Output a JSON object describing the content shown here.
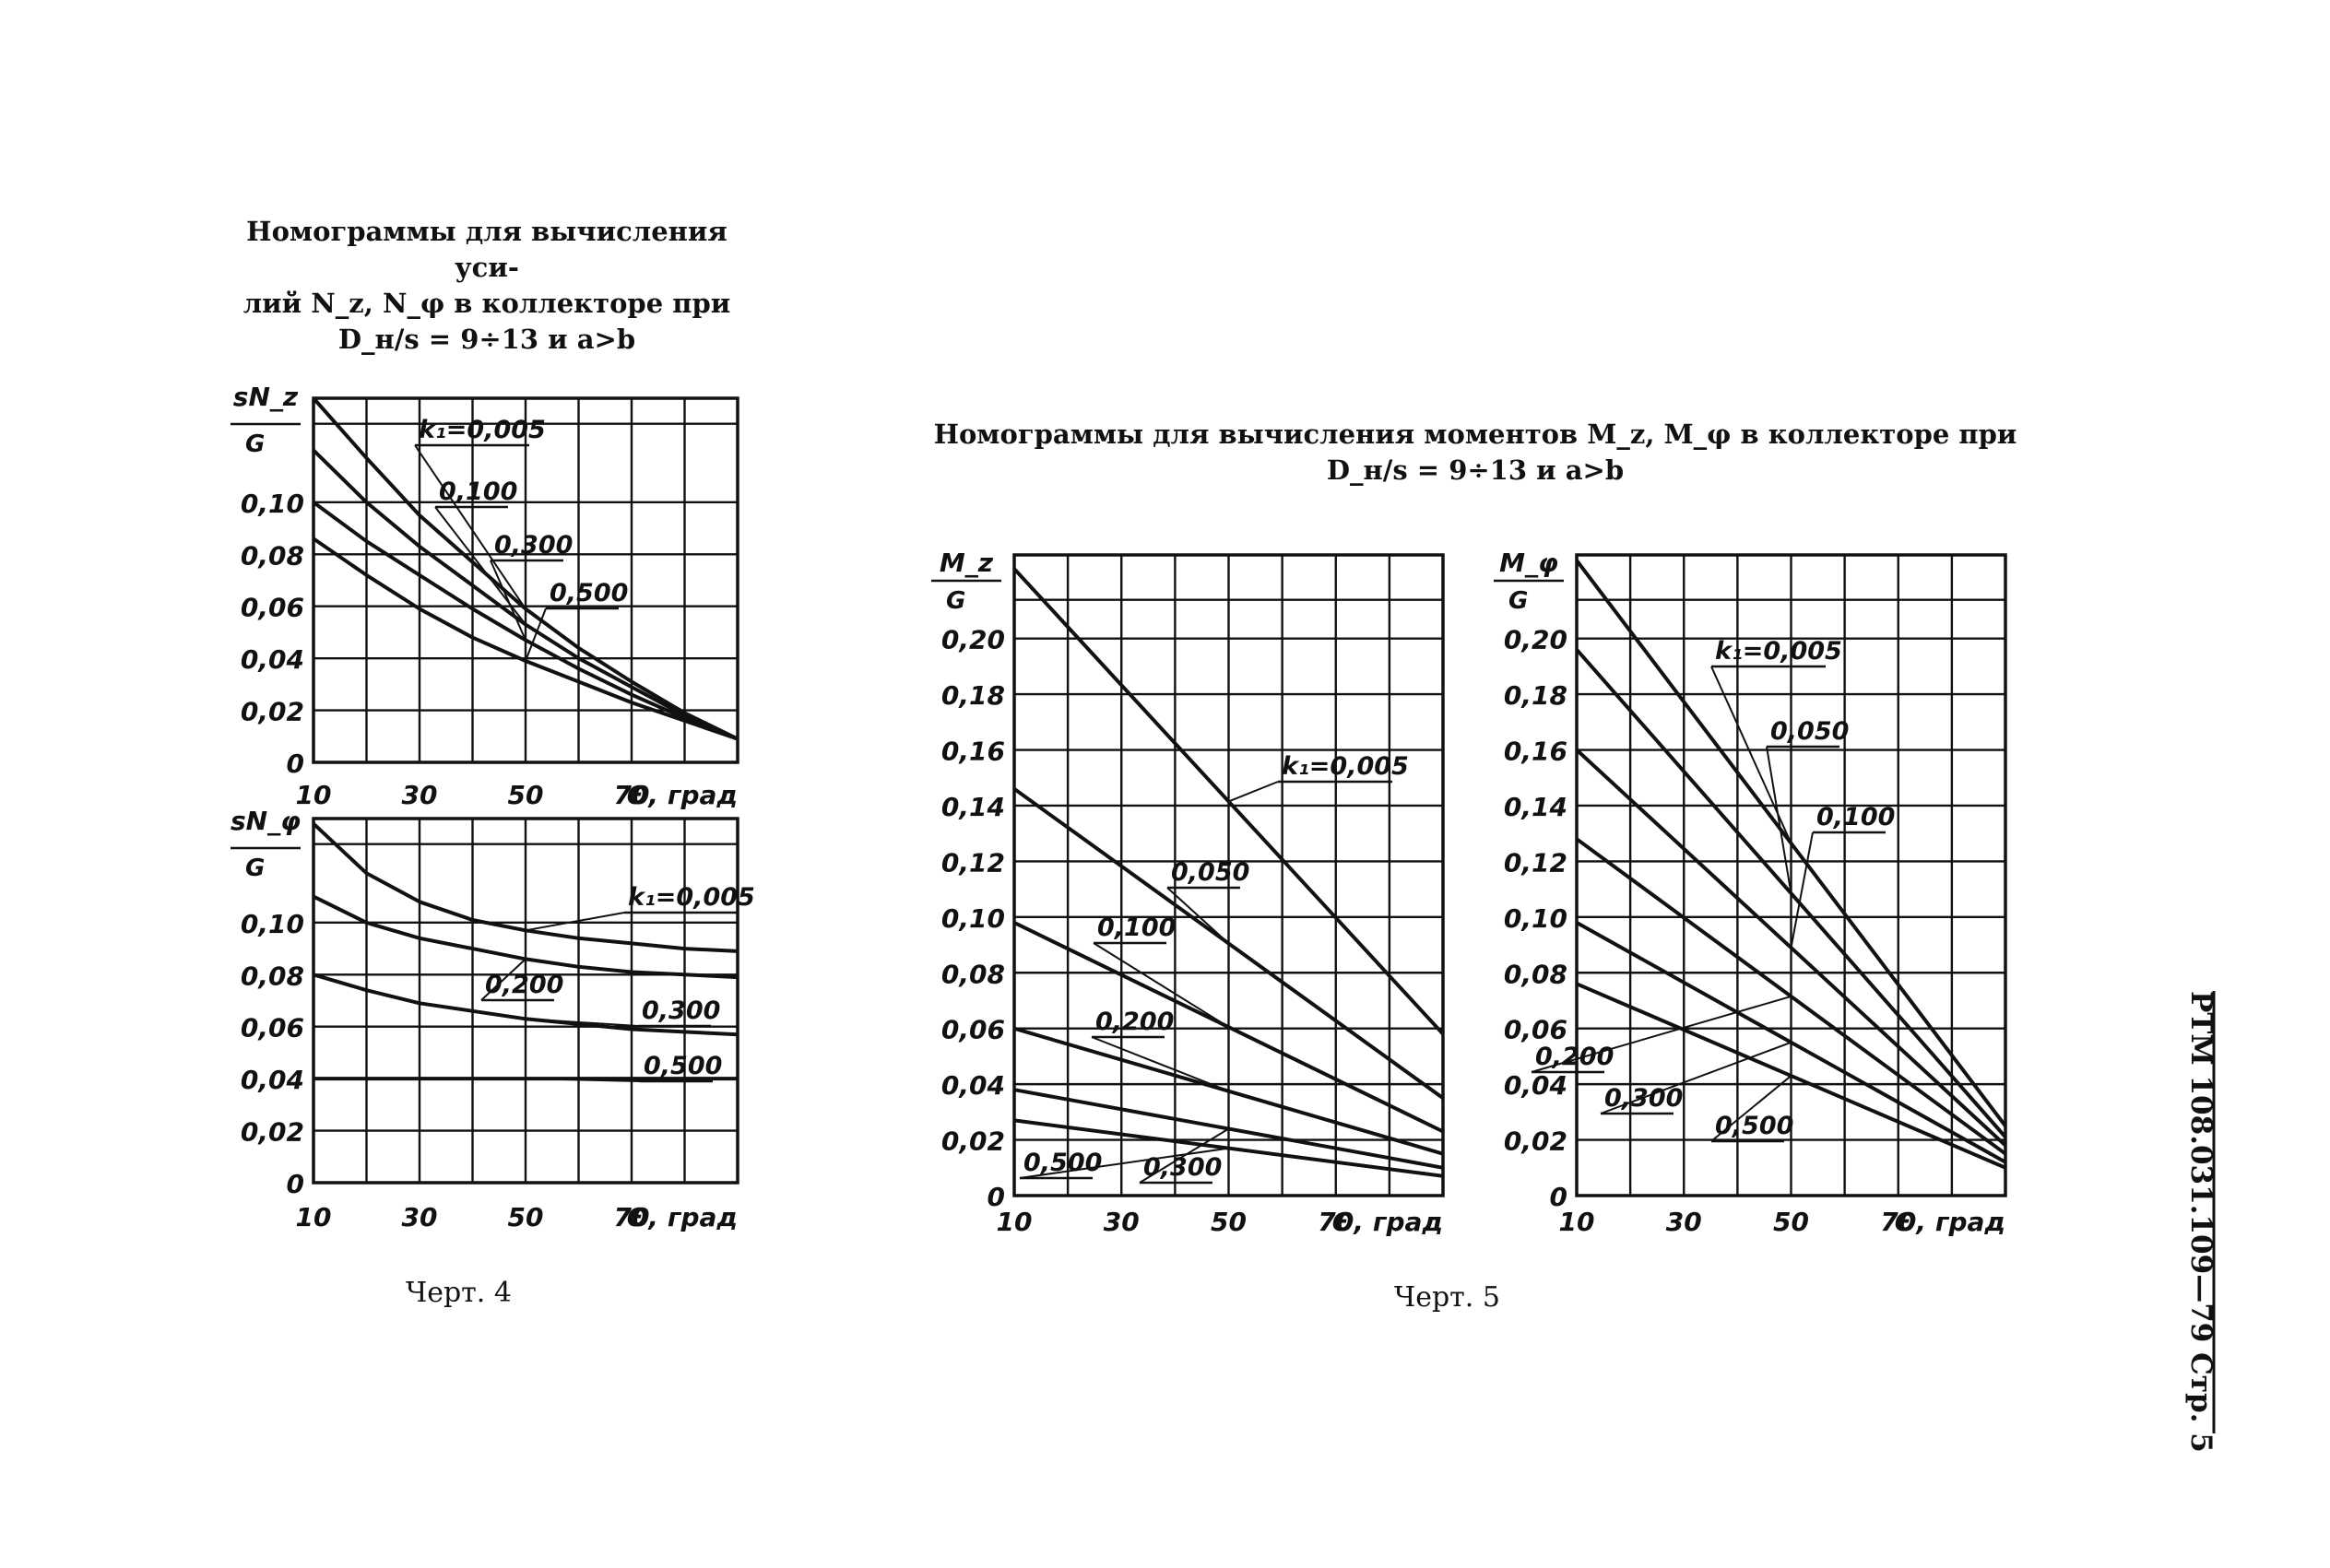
{
  "page": {
    "title_chart4": {
      "line1": "Номограммы для вычисления уси-",
      "line2": "лий N_z, N_φ в коллекторе при",
      "line3": "D_н/s = 9÷13 и a>b"
    },
    "title_chart5": {
      "line1": "Номограммы для вычисления моментов M_z, M_φ в коллекторе при",
      "line2": "D_н/s = 9÷13 и a>b"
    },
    "caption_chart4": "Черт. 4",
    "caption_chart5": "Черт. 5",
    "side_stamp": "РТМ 108.031.109—79 Стр. 5",
    "colors": {
      "ink": "#111111",
      "paper": "#ffffff"
    }
  },
  "chart_data": [
    {
      "type": "line",
      "ylabel": "sN_z / G",
      "xlabel": "Θ, град",
      "xlim": [
        10,
        90
      ],
      "ylim": [
        0,
        0.14
      ],
      "grid": true,
      "x_ticks": [
        "10",
        "30",
        "50",
        "70"
      ],
      "y_ticks": [
        "0",
        "0,02",
        "0,04",
        "0,06",
        "0,08",
        "0,10"
      ],
      "series": [
        {
          "name": "k₁=0,005",
          "x": [
            10,
            20,
            30,
            40,
            50,
            60,
            70,
            80,
            90
          ],
          "y": [
            0.14,
            0.117,
            0.095,
            0.077,
            0.059,
            0.044,
            0.031,
            0.019,
            0.009
          ]
        },
        {
          "name": "0,100",
          "x": [
            10,
            20,
            30,
            40,
            50,
            60,
            70,
            80,
            90
          ],
          "y": [
            0.12,
            0.1,
            0.083,
            0.068,
            0.053,
            0.04,
            0.029,
            0.018,
            0.009
          ]
        },
        {
          "name": "0,300",
          "x": [
            10,
            20,
            30,
            40,
            50,
            60,
            70,
            80,
            90
          ],
          "y": [
            0.1,
            0.085,
            0.072,
            0.059,
            0.047,
            0.036,
            0.026,
            0.017,
            0.009
          ]
        },
        {
          "name": "0,500",
          "x": [
            10,
            20,
            30,
            40,
            50,
            60,
            70,
            80,
            90
          ],
          "y": [
            0.086,
            0.072,
            0.059,
            0.048,
            0.039,
            0.031,
            0.023,
            0.016,
            0.009
          ]
        }
      ]
    },
    {
      "type": "line",
      "ylabel": "sN_φ / G",
      "xlabel": "Θ, град",
      "xlim": [
        10,
        90
      ],
      "ylim": [
        0,
        0.14
      ],
      "grid": true,
      "x_ticks": [
        "10",
        "30",
        "50",
        "70"
      ],
      "y_ticks": [
        "0",
        "0,02",
        "0,04",
        "0,06",
        "0,08",
        "0,10"
      ],
      "series": [
        {
          "name": "k₁=0,005",
          "x": [
            10,
            20,
            30,
            40,
            50,
            60,
            70,
            80,
            90
          ],
          "y": [
            0.138,
            0.119,
            0.108,
            0.101,
            0.097,
            0.094,
            0.092,
            0.09,
            0.089
          ]
        },
        {
          "name": "0,200",
          "x": [
            10,
            20,
            30,
            40,
            50,
            60,
            70,
            80,
            90
          ],
          "y": [
            0.11,
            0.1,
            0.094,
            0.09,
            0.086,
            0.083,
            0.081,
            0.08,
            0.079
          ]
        },
        {
          "name": "0,300",
          "x": [
            10,
            20,
            30,
            40,
            50,
            60,
            70,
            80,
            90
          ],
          "y": [
            0.08,
            0.074,
            0.069,
            0.066,
            0.063,
            0.061,
            0.059,
            0.058,
            0.057
          ]
        },
        {
          "name": "0,500",
          "x": [
            10,
            90
          ],
          "y": [
            0.04,
            0.04
          ]
        }
      ]
    },
    {
      "type": "line",
      "ylabel": "M_z / G",
      "xlabel": "Θ, град",
      "xlim": [
        10,
        90
      ],
      "ylim": [
        0,
        0.23
      ],
      "grid": true,
      "x_ticks": [
        "10",
        "30",
        "50",
        "70"
      ],
      "y_ticks": [
        "0",
        "0,02",
        "0,04",
        "0,06",
        "0,08",
        "0,10",
        "0,12",
        "0,14",
        "0,16",
        "0,18",
        "0,20"
      ],
      "series": [
        {
          "name": "k₁=0,005",
          "x": [
            10,
            90
          ],
          "y": [
            0.225,
            0.058
          ]
        },
        {
          "name": "0,050",
          "x": [
            10,
            90
          ],
          "y": [
            0.146,
            0.035
          ]
        },
        {
          "name": "0,100",
          "x": [
            10,
            90
          ],
          "y": [
            0.098,
            0.023
          ]
        },
        {
          "name": "0,200",
          "x": [
            10,
            90
          ],
          "y": [
            0.06,
            0.015
          ]
        },
        {
          "name": "0,300",
          "x": [
            10,
            90
          ],
          "y": [
            0.038,
            0.01
          ]
        },
        {
          "name": "0,500",
          "x": [
            10,
            90
          ],
          "y": [
            0.027,
            0.007
          ]
        }
      ]
    },
    {
      "type": "line",
      "ylabel": "M_φ / G",
      "xlabel": "Θ, град",
      "xlim": [
        10,
        90
      ],
      "ylim": [
        0,
        0.23
      ],
      "grid": true,
      "x_ticks": [
        "10",
        "30",
        "50",
        "70"
      ],
      "y_ticks": [
        "0",
        "0,02",
        "0,04",
        "0,06",
        "0,08",
        "0,10",
        "0,12",
        "0,14",
        "0,16",
        "0,18",
        "0,20"
      ],
      "series": [
        {
          "name": "k₁=0,005",
          "x": [
            10,
            90
          ],
          "y": [
            0.228,
            0.025
          ]
        },
        {
          "name": "0,050",
          "x": [
            10,
            90
          ],
          "y": [
            0.196,
            0.021
          ]
        },
        {
          "name": "0,100",
          "x": [
            10,
            90
          ],
          "y": [
            0.16,
            0.018
          ]
        },
        {
          "name": "0,200",
          "x": [
            10,
            90
          ],
          "y": [
            0.128,
            0.015
          ]
        },
        {
          "name": "0,300",
          "x": [
            10,
            90
          ],
          "y": [
            0.098,
            0.012
          ]
        },
        {
          "name": "0,500",
          "x": [
            10,
            90
          ],
          "y": [
            0.076,
            0.01
          ]
        }
      ]
    }
  ]
}
